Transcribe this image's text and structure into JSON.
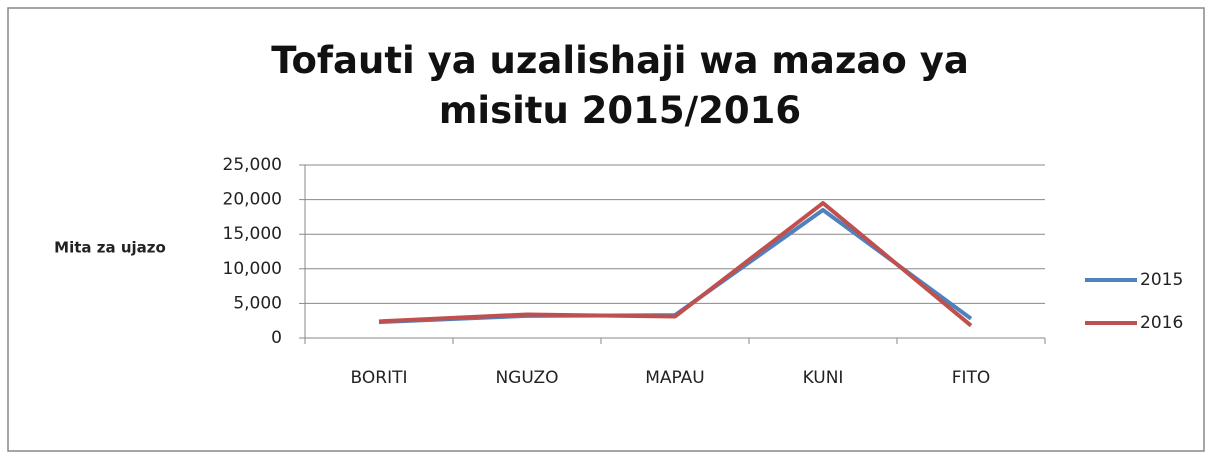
{
  "chart_data": {
    "type": "line",
    "title": "Tofauti ya uzalishaji wa mazao ya misitu 2015/2016",
    "y_label": "Mita za ujazo",
    "categories": [
      "BORITI",
      "NGUZO",
      "MAPAU",
      "KUNI",
      "FITO"
    ],
    "series": [
      {
        "name": "2015",
        "color": "#4f81bd",
        "values": [
          2300,
          3200,
          3300,
          18500,
          2800
        ]
      },
      {
        "name": "2016",
        "color": "#c0504d",
        "values": [
          2400,
          3400,
          3100,
          19500,
          1800
        ]
      }
    ],
    "ylim": [
      0,
      25000
    ],
    "yticks": [
      0,
      {
        "value": 5000,
        "label": "5,000"
      },
      {
        "value": 10000,
        "label": "10,000"
      },
      {
        "value": 15000,
        "label": "15,000"
      },
      {
        "value": 20000,
        "label": "20,000"
      },
      {
        "value": 25000,
        "label": "25,000"
      }
    ],
    "grid": true,
    "legend": "right"
  }
}
